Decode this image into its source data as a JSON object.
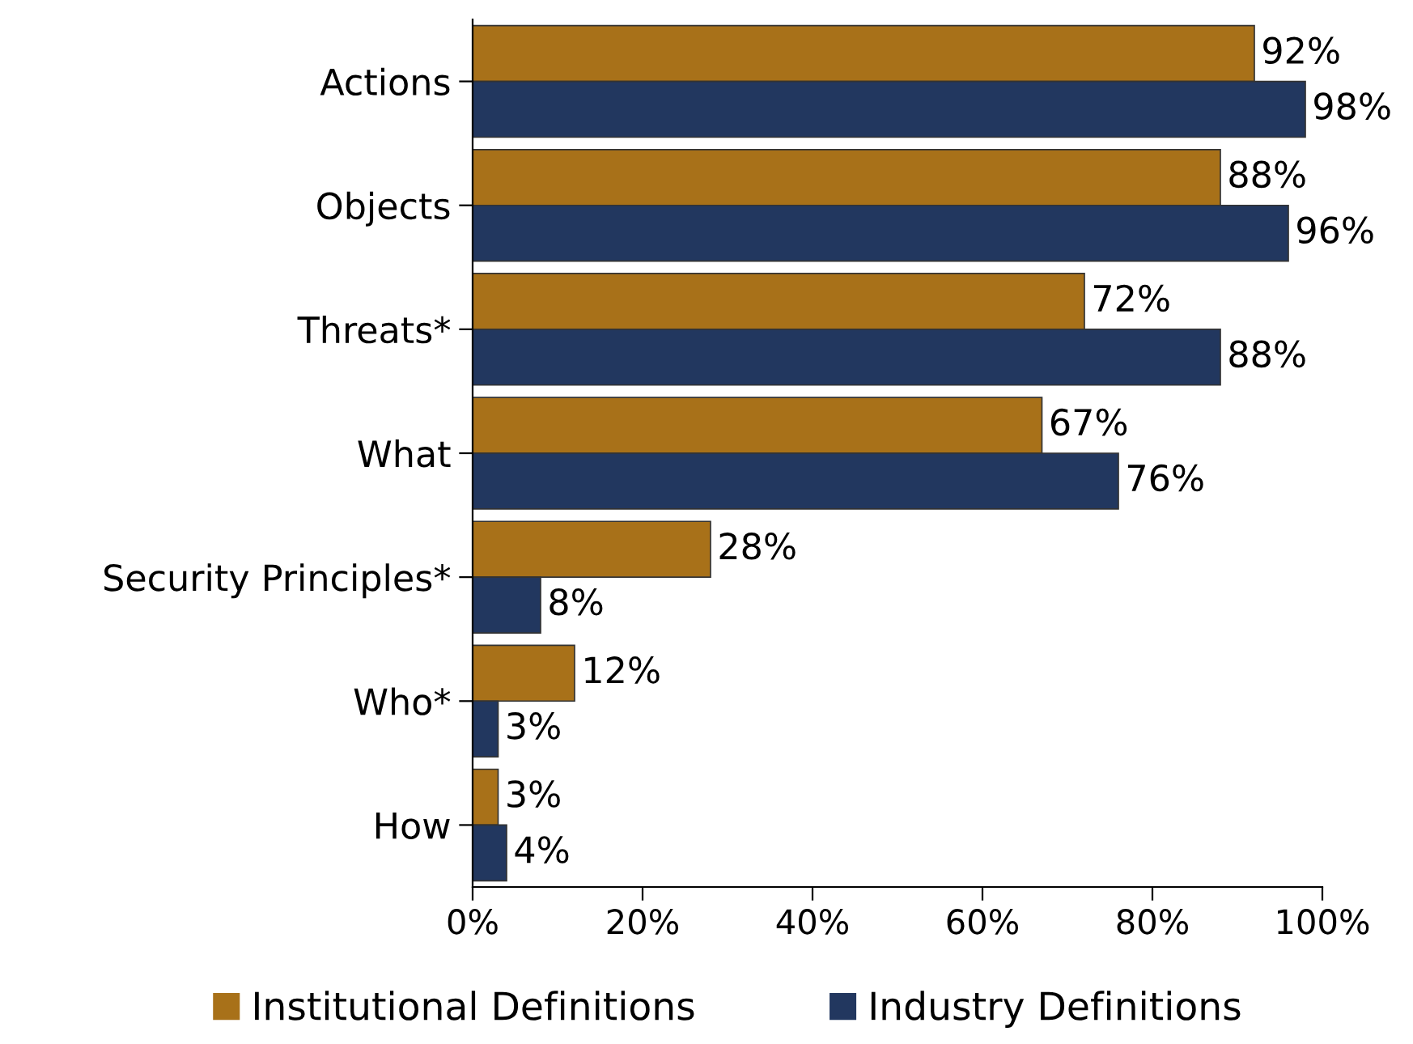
{
  "chart_data": {
    "type": "bar",
    "orientation": "horizontal",
    "categories": [
      "Actions",
      "Objects",
      "Threats*",
      "What",
      "Security Principles*",
      "Who*",
      "How"
    ],
    "series": [
      {
        "name": "Institutional Definitions",
        "color": "#a87119",
        "values": [
          92,
          88,
          72,
          67,
          28,
          12,
          3
        ],
        "value_labels": [
          "92%",
          "88%",
          "72%",
          "67%",
          "28%",
          "12%",
          "3%"
        ]
      },
      {
        "name": "Industry Definitions",
        "color": "#22375f",
        "values": [
          98,
          96,
          88,
          76,
          8,
          3,
          4
        ],
        "value_labels": [
          "98%",
          "96%",
          "88%",
          "76%",
          "8%",
          "3%",
          "4%"
        ]
      }
    ],
    "xlim": [
      0,
      100
    ],
    "xticks": [
      {
        "value": 0,
        "label": "0%"
      },
      {
        "value": 20,
        "label": "20%"
      },
      {
        "value": 40,
        "label": "40%"
      },
      {
        "value": 60,
        "label": "60%"
      },
      {
        "value": 80,
        "label": "80%"
      },
      {
        "value": 100,
        "label": "100%"
      }
    ],
    "grid": false,
    "legend": "bottom"
  }
}
